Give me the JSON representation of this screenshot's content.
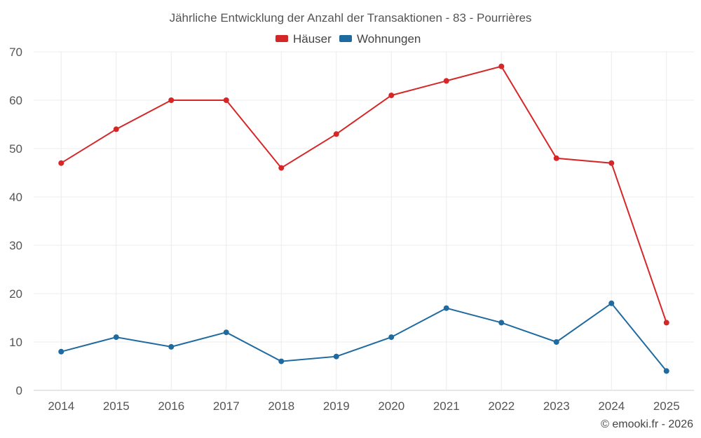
{
  "chart_data": {
    "type": "line",
    "title": "Jährliche Entwicklung der Anzahl der Transaktionen - 83 - Pourrières",
    "categories": [
      "2014",
      "2015",
      "2016",
      "2017",
      "2018",
      "2019",
      "2020",
      "2021",
      "2022",
      "2023",
      "2024",
      "2025"
    ],
    "series": [
      {
        "name": "Häuser",
        "color": "#d62728",
        "values": [
          47,
          54,
          60,
          60,
          46,
          53,
          61,
          64,
          67,
          48,
          47,
          14
        ]
      },
      {
        "name": "Wohnungen",
        "color": "#1f6a9e",
        "values": [
          8,
          11,
          9,
          12,
          6,
          7,
          11,
          17,
          14,
          10,
          18,
          4
        ]
      }
    ],
    "ylim": [
      0,
      70
    ],
    "yticks": [
      0,
      10,
      20,
      30,
      40,
      50,
      60,
      70
    ],
    "grid": true,
    "legend_position": "top-center",
    "xlabel": "",
    "ylabel": ""
  },
  "credit": "© emooki.fr - 2026"
}
